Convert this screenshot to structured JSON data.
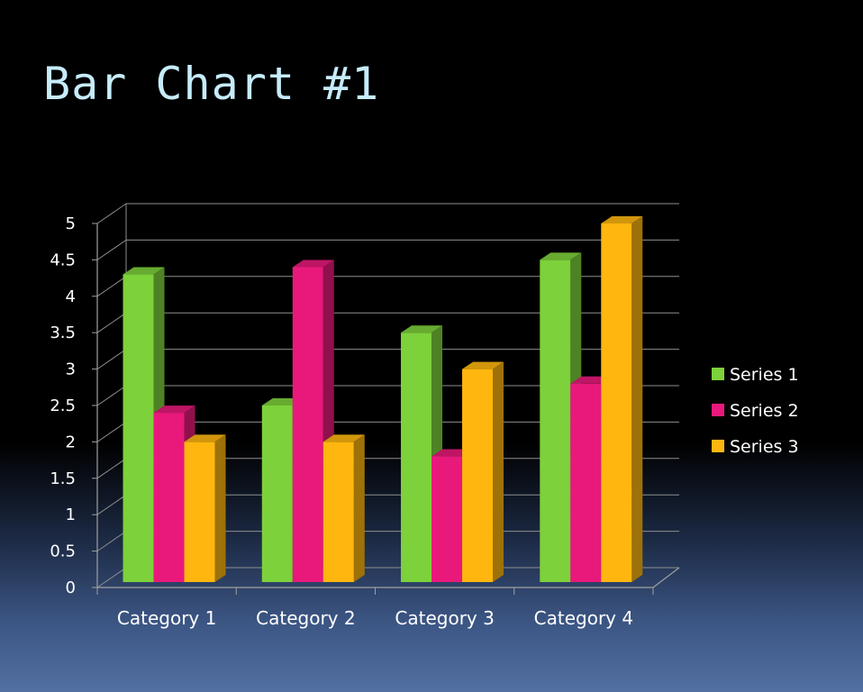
{
  "title": "Bar Chart #1",
  "chart_data": {
    "type": "bar",
    "categories": [
      "Category 1",
      "Category 2",
      "Category 3",
      "Category 4"
    ],
    "series": [
      {
        "name": "Series 1",
        "values": [
          4.3,
          2.5,
          3.5,
          4.5
        ],
        "color": "#7dd13a"
      },
      {
        "name": "Series 2",
        "values": [
          2.4,
          4.4,
          1.8,
          2.8
        ],
        "color": "#e8197b"
      },
      {
        "name": "Series 3",
        "values": [
          2,
          2,
          3,
          5
        ],
        "color": "#ffb70f"
      }
    ],
    "ylim": [
      0,
      5
    ],
    "yticks": [
      "0",
      "0.5",
      "1",
      "1.5",
      "2",
      "2.5",
      "3",
      "3.5",
      "4",
      "4.5",
      "5"
    ],
    "grid": true,
    "legend": "right",
    "style": "3d"
  }
}
